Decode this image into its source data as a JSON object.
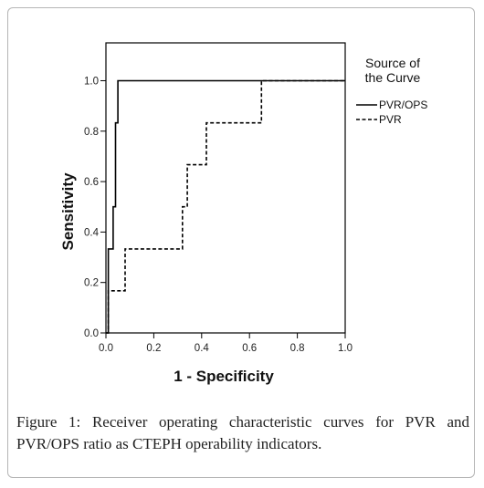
{
  "chart_data": {
    "type": "line",
    "xlabel": "1 - Specificity",
    "ylabel": "Sensitivity",
    "xlim": [
      0,
      1
    ],
    "ylim": [
      0,
      1.15
    ],
    "x_ticks": [
      "0.0",
      "0.2",
      "0.4",
      "0.6",
      "0.8",
      "1.0"
    ],
    "y_ticks": [
      "0.0",
      "0.2",
      "0.4",
      "0.6",
      "0.8",
      "1.0"
    ],
    "grid": false,
    "legend": {
      "title_line1": "Source of",
      "title_line2": "the Curve",
      "placement": "right"
    },
    "series": [
      {
        "name": "PVR/OPS",
        "style": "solid",
        "color": "#000000",
        "points": [
          [
            0,
            0
          ],
          [
            0.01,
            0
          ],
          [
            0.01,
            0.333
          ],
          [
            0.03,
            0.333
          ],
          [
            0.03,
            0.5
          ],
          [
            0.04,
            0.5
          ],
          [
            0.04,
            0.833
          ],
          [
            0.05,
            0.833
          ],
          [
            0.05,
            1.0
          ],
          [
            1.0,
            1.0
          ]
        ]
      },
      {
        "name": "PVR",
        "style": "dashed",
        "color": "#000000",
        "points": [
          [
            0,
            0
          ],
          [
            0.01,
            0
          ],
          [
            0.01,
            0.167
          ],
          [
            0.08,
            0.167
          ],
          [
            0.08,
            0.333
          ],
          [
            0.32,
            0.333
          ],
          [
            0.32,
            0.5
          ],
          [
            0.34,
            0.5
          ],
          [
            0.34,
            0.667
          ],
          [
            0.42,
            0.667
          ],
          [
            0.42,
            0.833
          ],
          [
            0.65,
            0.833
          ],
          [
            0.65,
            1.0
          ],
          [
            1.0,
            1.0
          ]
        ]
      }
    ]
  },
  "caption": {
    "label": "Figure 1:",
    "text": " Receiver operating characteristic curves for PVR and PVR/OPS ratio as CTEPH operability indicators."
  }
}
